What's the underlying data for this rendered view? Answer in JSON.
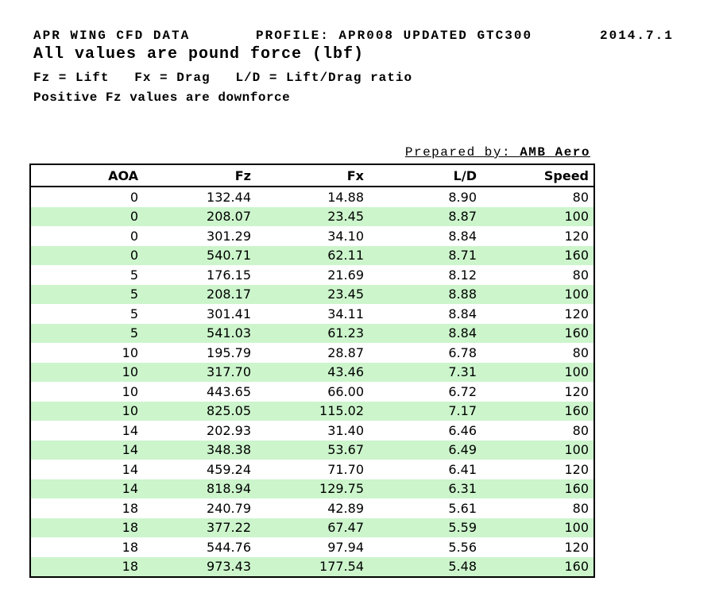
{
  "header": {
    "title": "APR WING CFD DATA",
    "profile": "PROFILE: APR008 UPDATED GTC300",
    "date": "2014.7.1",
    "subtitle": "All values are pound force (lbf)",
    "legend": "Fz = Lift   Fx = Drag   L/D = Lift/Drag ratio",
    "note": "Positive Fz values are downforce"
  },
  "prepared_by": {
    "label": "Prepared by: ",
    "value": "AMB Aero"
  },
  "table": {
    "columns": [
      "AOA",
      "Fz",
      "Fx",
      "L/D",
      "Speed"
    ],
    "rows": [
      [
        "0",
        "132.44",
        "14.88",
        "8.90",
        "80"
      ],
      [
        "0",
        "208.07",
        "23.45",
        "8.87",
        "100"
      ],
      [
        "0",
        "301.29",
        "34.10",
        "8.84",
        "120"
      ],
      [
        "0",
        "540.71",
        "62.11",
        "8.71",
        "160"
      ],
      [
        "5",
        "176.15",
        "21.69",
        "8.12",
        "80"
      ],
      [
        "5",
        "208.17",
        "23.45",
        "8.88",
        "100"
      ],
      [
        "5",
        "301.41",
        "34.11",
        "8.84",
        "120"
      ],
      [
        "5",
        "541.03",
        "61.23",
        "8.84",
        "160"
      ],
      [
        "10",
        "195.79",
        "28.87",
        "6.78",
        "80"
      ],
      [
        "10",
        "317.70",
        "43.46",
        "7.31",
        "100"
      ],
      [
        "10",
        "443.65",
        "66.00",
        "6.72",
        "120"
      ],
      [
        "10",
        "825.05",
        "115.02",
        "7.17",
        "160"
      ],
      [
        "14",
        "202.93",
        "31.40",
        "6.46",
        "80"
      ],
      [
        "14",
        "348.38",
        "53.67",
        "6.49",
        "100"
      ],
      [
        "14",
        "459.24",
        "71.70",
        "6.41",
        "120"
      ],
      [
        "14",
        "818.94",
        "129.75",
        "6.31",
        "160"
      ],
      [
        "18",
        "240.79",
        "42.89",
        "5.61",
        "80"
      ],
      [
        "18",
        "377.22",
        "67.47",
        "5.59",
        "100"
      ],
      [
        "18",
        "544.76",
        "97.94",
        "5.56",
        "120"
      ],
      [
        "18",
        "973.43",
        "177.54",
        "5.48",
        "160"
      ]
    ]
  },
  "colors": {
    "row_alt_background": "#ccf5cc",
    "border": "#000000",
    "text": "#000000"
  }
}
